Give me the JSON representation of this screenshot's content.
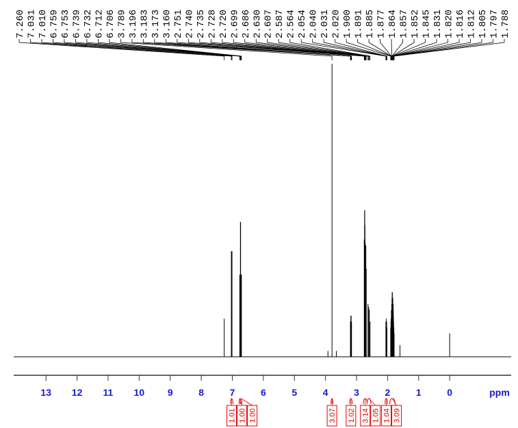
{
  "chart_data": {
    "type": "nmr",
    "xlabel": "ppm",
    "xlim": [
      14.04,
      -1.98
    ],
    "xticks": [
      13,
      12,
      11,
      10,
      9,
      8,
      7,
      6,
      5,
      4,
      3,
      2,
      1,
      0
    ],
    "ylim": [
      0,
      100
    ],
    "color": "#000000",
    "integral_color": "#e00000",
    "peaks": [
      {
        "value": 7.26,
        "label": "7.260"
      },
      {
        "value": 7.031,
        "label": "7.031"
      },
      {
        "value": 7.01,
        "label": "7.010"
      },
      {
        "value": 6.759,
        "label": "6.759"
      },
      {
        "value": 6.753,
        "label": "6.753"
      },
      {
        "value": 6.739,
        "label": "6.739"
      },
      {
        "value": 6.732,
        "label": "6.732"
      },
      {
        "value": 6.712,
        "label": "6.712"
      },
      {
        "value": 6.706,
        "label": "6.706"
      },
      {
        "value": 3.789,
        "label": "3.789"
      },
      {
        "value": 3.196,
        "label": "3.196"
      },
      {
        "value": 3.183,
        "label": "3.183"
      },
      {
        "value": 3.173,
        "label": "3.173"
      },
      {
        "value": 3.16,
        "label": "3.160"
      },
      {
        "value": 2.751,
        "label": "2.751"
      },
      {
        "value": 2.74,
        "label": "2.740"
      },
      {
        "value": 2.735,
        "label": "2.735"
      },
      {
        "value": 2.728,
        "label": "2.728"
      },
      {
        "value": 2.72,
        "label": "2.720"
      },
      {
        "value": 2.699,
        "label": "2.699"
      },
      {
        "value": 2.686,
        "label": "2.686"
      },
      {
        "value": 2.63,
        "label": "2.630"
      },
      {
        "value": 2.607,
        "label": "2.607"
      },
      {
        "value": 2.587,
        "label": "2.587"
      },
      {
        "value": 2.564,
        "label": "2.564"
      },
      {
        "value": 2.054,
        "label": "2.054"
      },
      {
        "value": 2.04,
        "label": "2.040"
      },
      {
        "value": 2.031,
        "label": "2.031"
      },
      {
        "value": 2.02,
        "label": "2.020"
      },
      {
        "value": 1.9,
        "label": "1.900"
      },
      {
        "value": 1.891,
        "label": "1.891"
      },
      {
        "value": 1.885,
        "label": "1.885"
      },
      {
        "value": 1.877,
        "label": "1.877"
      },
      {
        "value": 1.864,
        "label": "1.864"
      },
      {
        "value": 1.857,
        "label": "1.857"
      },
      {
        "value": 1.852,
        "label": "1.852"
      },
      {
        "value": 1.845,
        "label": "1.845"
      },
      {
        "value": 1.831,
        "label": "1.831"
      },
      {
        "value": 1.82,
        "label": "1.820"
      },
      {
        "value": 1.816,
        "label": "1.816"
      },
      {
        "value": 1.812,
        "label": "1.812"
      },
      {
        "value": 1.805,
        "label": "1.805"
      },
      {
        "value": 1.797,
        "label": "1.797"
      },
      {
        "value": 1.788,
        "label": "1.788"
      }
    ],
    "intensities": [
      13,
      36,
      36,
      28,
      28,
      46,
      46,
      28,
      28,
      100,
      12,
      14,
      14,
      12,
      40,
      50,
      50,
      45,
      39,
      38,
      30,
      18,
      17,
      16,
      12,
      12,
      13,
      12,
      10,
      10,
      12,
      13,
      16,
      18,
      20,
      22,
      22,
      20,
      18,
      16,
      14,
      12,
      10,
      8
    ],
    "other_peaks": [
      {
        "x": 3.92,
        "intensity": 2
      },
      {
        "x": 3.65,
        "intensity": 2
      },
      {
        "x": 1.6,
        "intensity": 4
      },
      {
        "x": 0,
        "intensity": 8
      }
    ],
    "integrals": [
      {
        "value": 1.01,
        "label": "1.01"
      },
      {
        "value": 1,
        "label": "1.00"
      },
      {
        "value": 1,
        "label": "1.00"
      },
      {
        "value": 3.07,
        "label": "3.07"
      },
      {
        "value": 1.02,
        "label": "1.02"
      },
      {
        "value": 3.14,
        "label": "3.14"
      },
      {
        "value": 1.05,
        "label": "1.05"
      },
      {
        "value": 1.04,
        "label": "1.04"
      },
      {
        "value": 3.09,
        "label": "3.09"
      }
    ],
    "integral_ranges": [
      [
        7.06,
        6.98
      ],
      [
        6.78,
        6.74
      ],
      [
        6.74,
        6.69
      ],
      [
        3.82,
        3.76
      ],
      [
        3.22,
        3.14
      ],
      [
        2.78,
        2.66
      ],
      [
        2.66,
        2.54
      ],
      [
        2.08,
        2.0
      ],
      [
        1.93,
        1.76
      ]
    ]
  }
}
